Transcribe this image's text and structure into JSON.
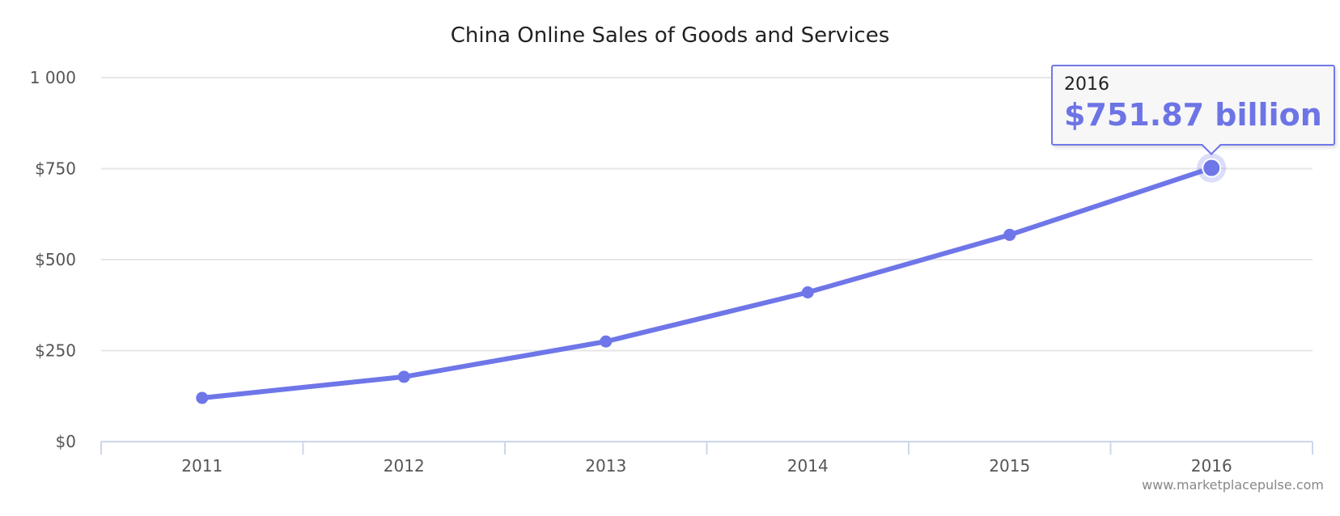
{
  "chart_data": {
    "type": "line",
    "title": "China Online Sales of Goods and Services",
    "categories": [
      "2011",
      "2012",
      "2013",
      "2014",
      "2015",
      "2016"
    ],
    "series": [
      {
        "values": [
          120,
          178,
          275,
          410,
          568,
          751.87
        ]
      }
    ],
    "ylim": [
      0,
      1000
    ],
    "yticks": [
      0,
      250,
      500,
      750,
      1000
    ],
    "ytick_labels": [
      "$0",
      "$250",
      "$500",
      "$750",
      "1 000"
    ],
    "xlabel": "",
    "ylabel": "",
    "grid": "horizontal",
    "line_color": "#6e76e8",
    "tooltip": {
      "header": "2016",
      "value": "$751.87 billion"
    },
    "credit": "www.marketplacepulse.com"
  }
}
